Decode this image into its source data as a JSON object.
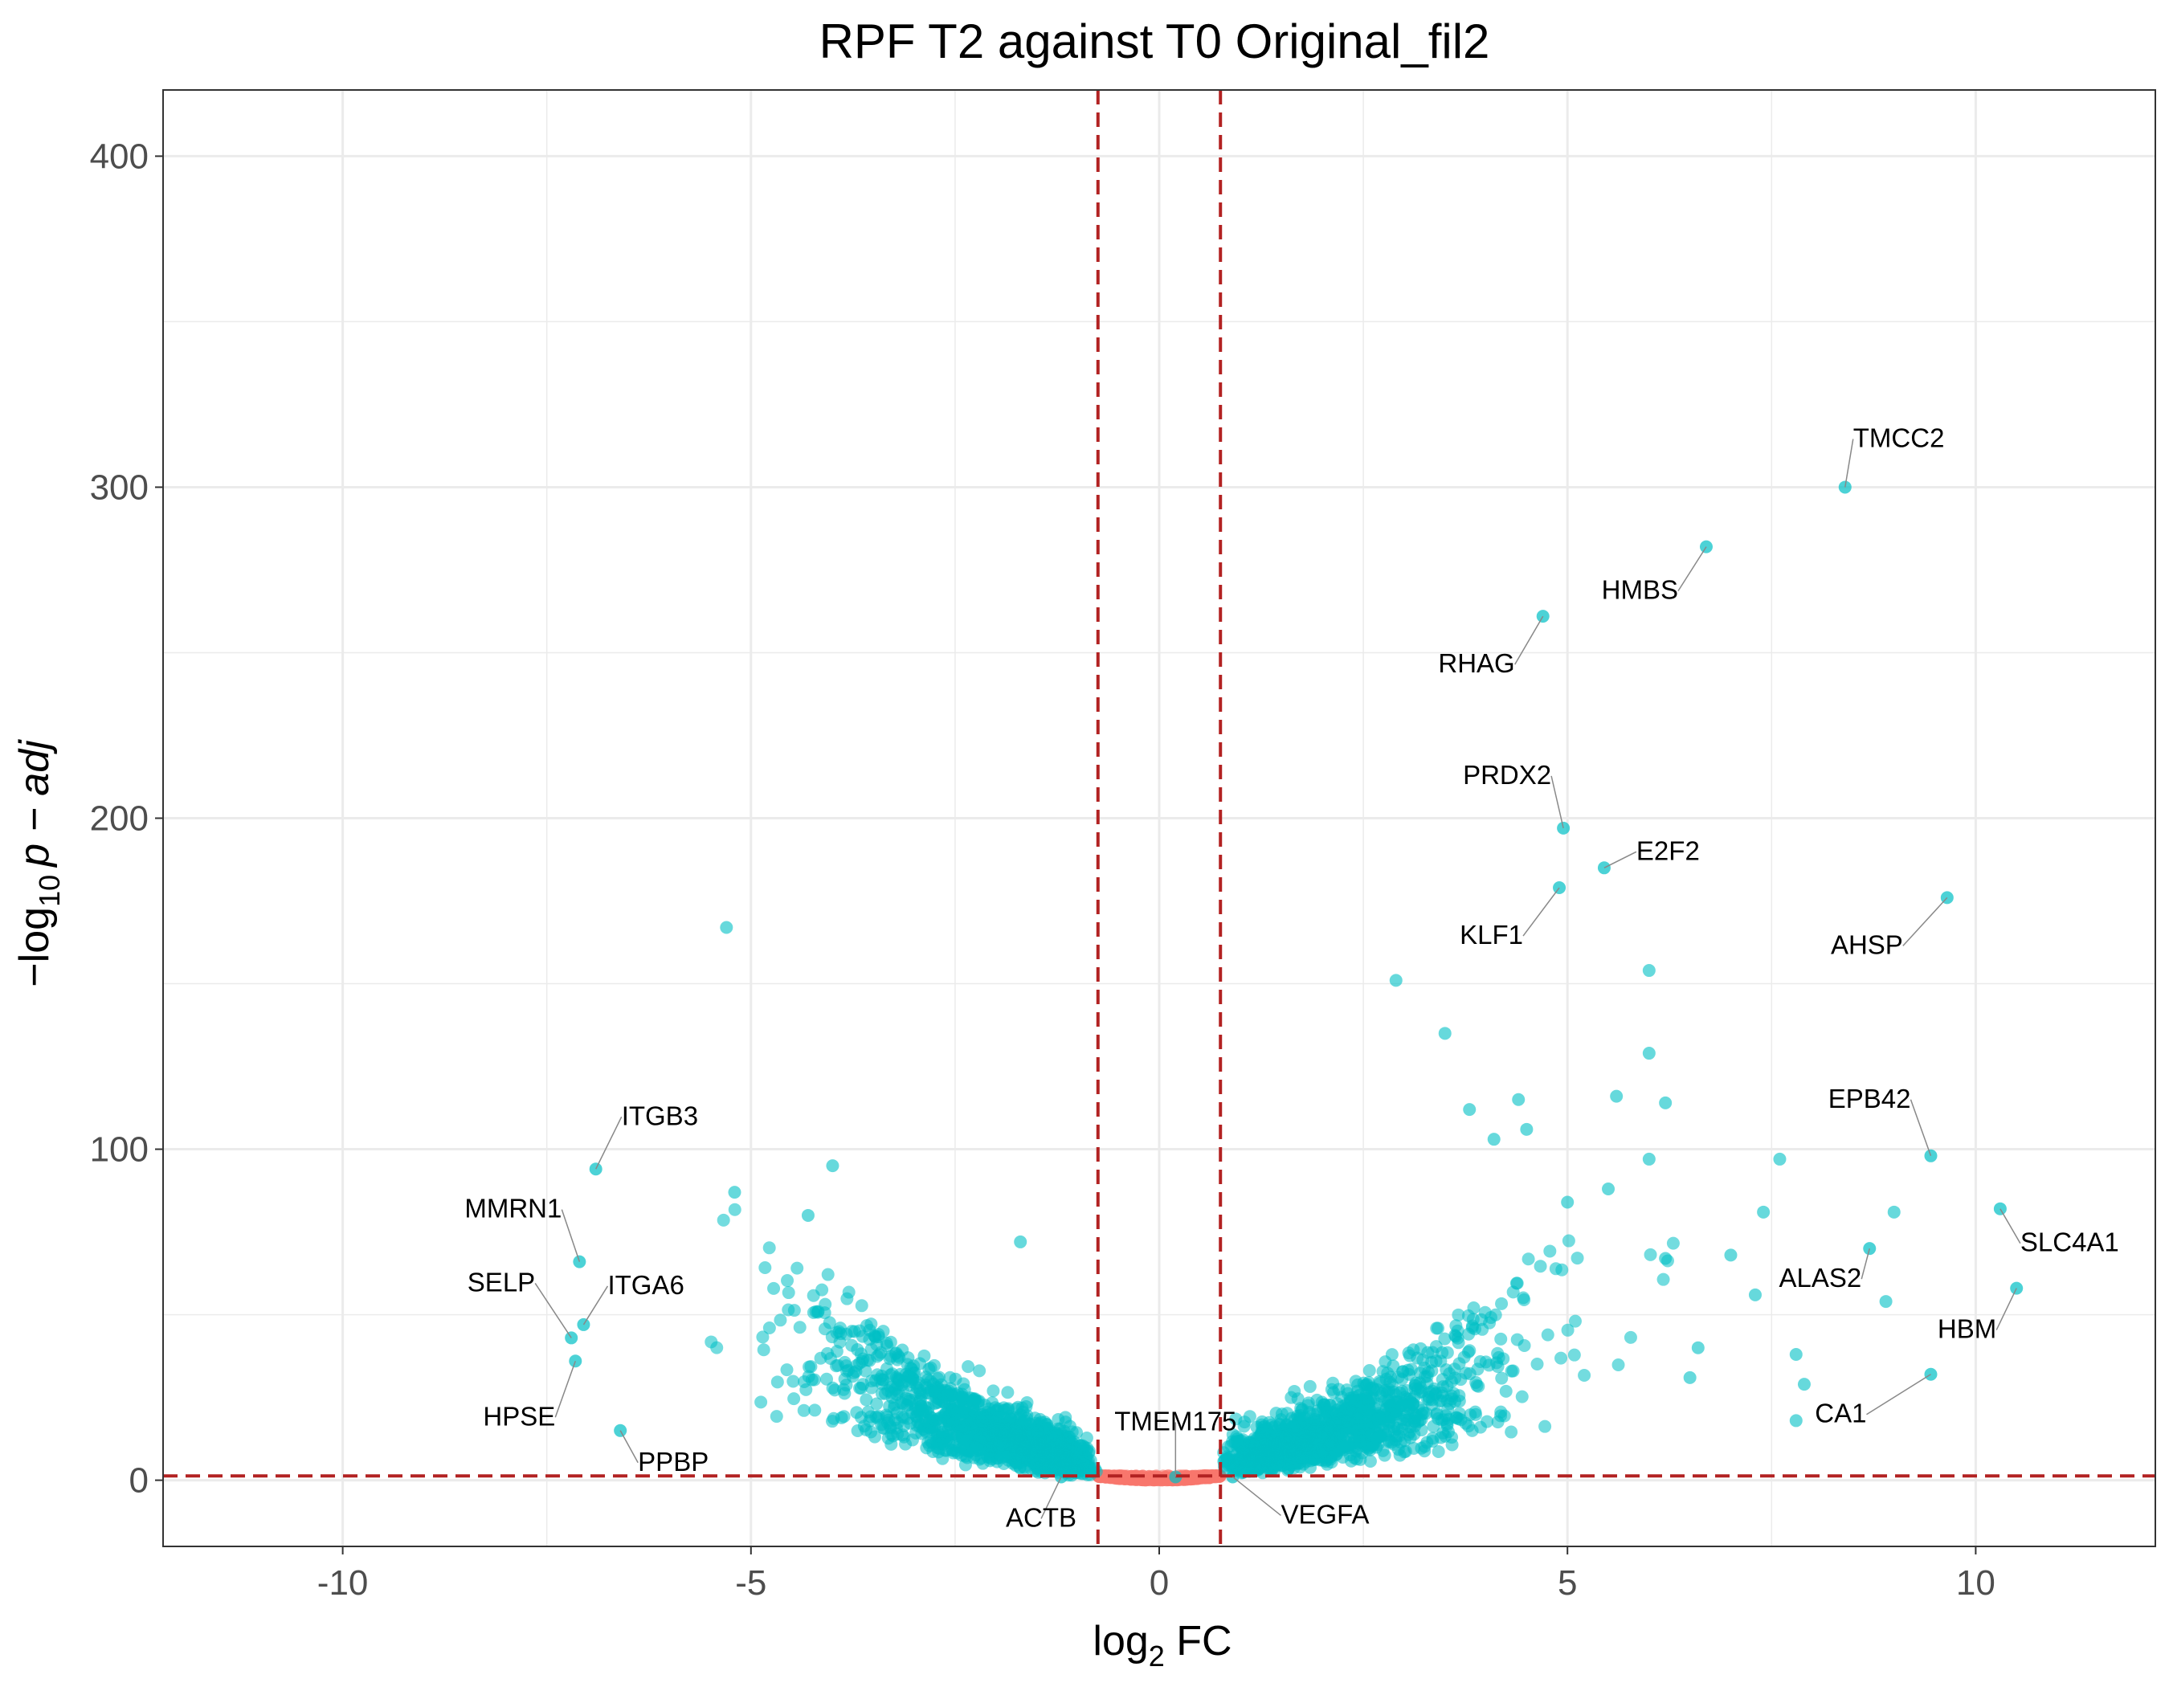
{
  "chart_data": {
    "type": "scatter",
    "title": "RPF T2 against T0 Original_fil2",
    "xlabel_main": "log",
    "xlabel_sub": "2",
    "xlabel_rest": " FC",
    "ylabel_main": "−log",
    "ylabel_sub": "10",
    "ylabel_rest": "p − adj",
    "xlim": [
      -12.2,
      12.2
    ],
    "ylim": [
      -20,
      420
    ],
    "x_ticks": [
      -10,
      -5,
      0,
      5,
      10
    ],
    "x_tick_labels": [
      "-10",
      "-5",
      "0",
      "5",
      "10"
    ],
    "y_ticks": [
      0,
      100,
      200,
      300,
      400
    ],
    "y_tick_labels": [
      "0",
      "100",
      "200",
      "300",
      "400"
    ],
    "grid": true,
    "threshold_lines": {
      "vertical": [
        -0.75,
        0.75
      ],
      "horizontal": [
        1.3
      ]
    },
    "colors": {
      "significant": "#00BFC4",
      "not_significant": "#F8766D",
      "threshold": "#B22222",
      "grid": "#EBEBEB"
    },
    "highlighted_points": [
      {
        "x": -5.3,
        "y": 167
      },
      {
        "x": -4.0,
        "y": 95
      },
      {
        "x": -5.2,
        "y": 87
      },
      {
        "x": -1.7,
        "y": 72
      },
      {
        "x": -4.3,
        "y": 80
      },
      {
        "x": 2.9,
        "y": 151
      },
      {
        "x": 6.0,
        "y": 154
      },
      {
        "x": 3.5,
        "y": 135
      },
      {
        "x": 6.0,
        "y": 129
      },
      {
        "x": 4.1,
        "y": 103
      },
      {
        "x": 5.6,
        "y": 116
      },
      {
        "x": 6.2,
        "y": 114
      },
      {
        "x": 7.6,
        "y": 97
      },
      {
        "x": 7.4,
        "y": 81
      },
      {
        "x": 9.0,
        "y": 81
      },
      {
        "x": 8.9,
        "y": 54
      },
      {
        "x": 7.8,
        "y": 38
      },
      {
        "x": 7.9,
        "y": 29
      },
      {
        "x": 7.8,
        "y": 18
      },
      {
        "x": 6.6,
        "y": 40
      },
      {
        "x": 6.5,
        "y": 31
      },
      {
        "x": 3.8,
        "y": 112
      },
      {
        "x": 4.4,
        "y": 115
      },
      {
        "x": 4.5,
        "y": 106
      },
      {
        "x": 5.0,
        "y": 84
      },
      {
        "x": 5.5,
        "y": 88
      },
      {
        "x": 6.0,
        "y": 97
      },
      {
        "x": 6.2,
        "y": 67
      },
      {
        "x": 7.0,
        "y": 68
      },
      {
        "x": 7.3,
        "y": 56
      }
    ],
    "labeled_points": [
      {
        "label": "TMCC2",
        "x": 8.4,
        "y": 300
      },
      {
        "label": "HMBS",
        "x": 6.7,
        "y": 282
      },
      {
        "label": "RHAG",
        "x": 4.7,
        "y": 261
      },
      {
        "label": "PRDX2",
        "x": 4.95,
        "y": 197
      },
      {
        "label": "E2F2",
        "x": 5.45,
        "y": 185
      },
      {
        "label": "KLF1",
        "x": 4.9,
        "y": 179
      },
      {
        "label": "AHSP",
        "x": 9.65,
        "y": 176
      },
      {
        "label": "EPB42",
        "x": 9.45,
        "y": 98
      },
      {
        "label": "ALAS2",
        "x": 8.7,
        "y": 70
      },
      {
        "label": "SLC4A1",
        "x": 10.3,
        "y": 82
      },
      {
        "label": "HBM",
        "x": 10.5,
        "y": 58
      },
      {
        "label": "CA1",
        "x": 9.45,
        "y": 32
      },
      {
        "label": "ITGB3",
        "x": -6.9,
        "y": 94
      },
      {
        "label": "MMRN1",
        "x": -7.1,
        "y": 66
      },
      {
        "label": "SELP",
        "x": -7.2,
        "y": 43
      },
      {
        "label": "ITGA6",
        "x": -7.05,
        "y": 47
      },
      {
        "label": "HPSE",
        "x": -7.15,
        "y": 36
      },
      {
        "label": "PPBP",
        "x": -6.6,
        "y": 15
      },
      {
        "label": "TMEM175",
        "x": 0.2,
        "y": 1
      },
      {
        "label": "ACTB",
        "x": -1.2,
        "y": 1
      },
      {
        "label": "VEGFA",
        "x": 0.9,
        "y": 1
      }
    ]
  }
}
